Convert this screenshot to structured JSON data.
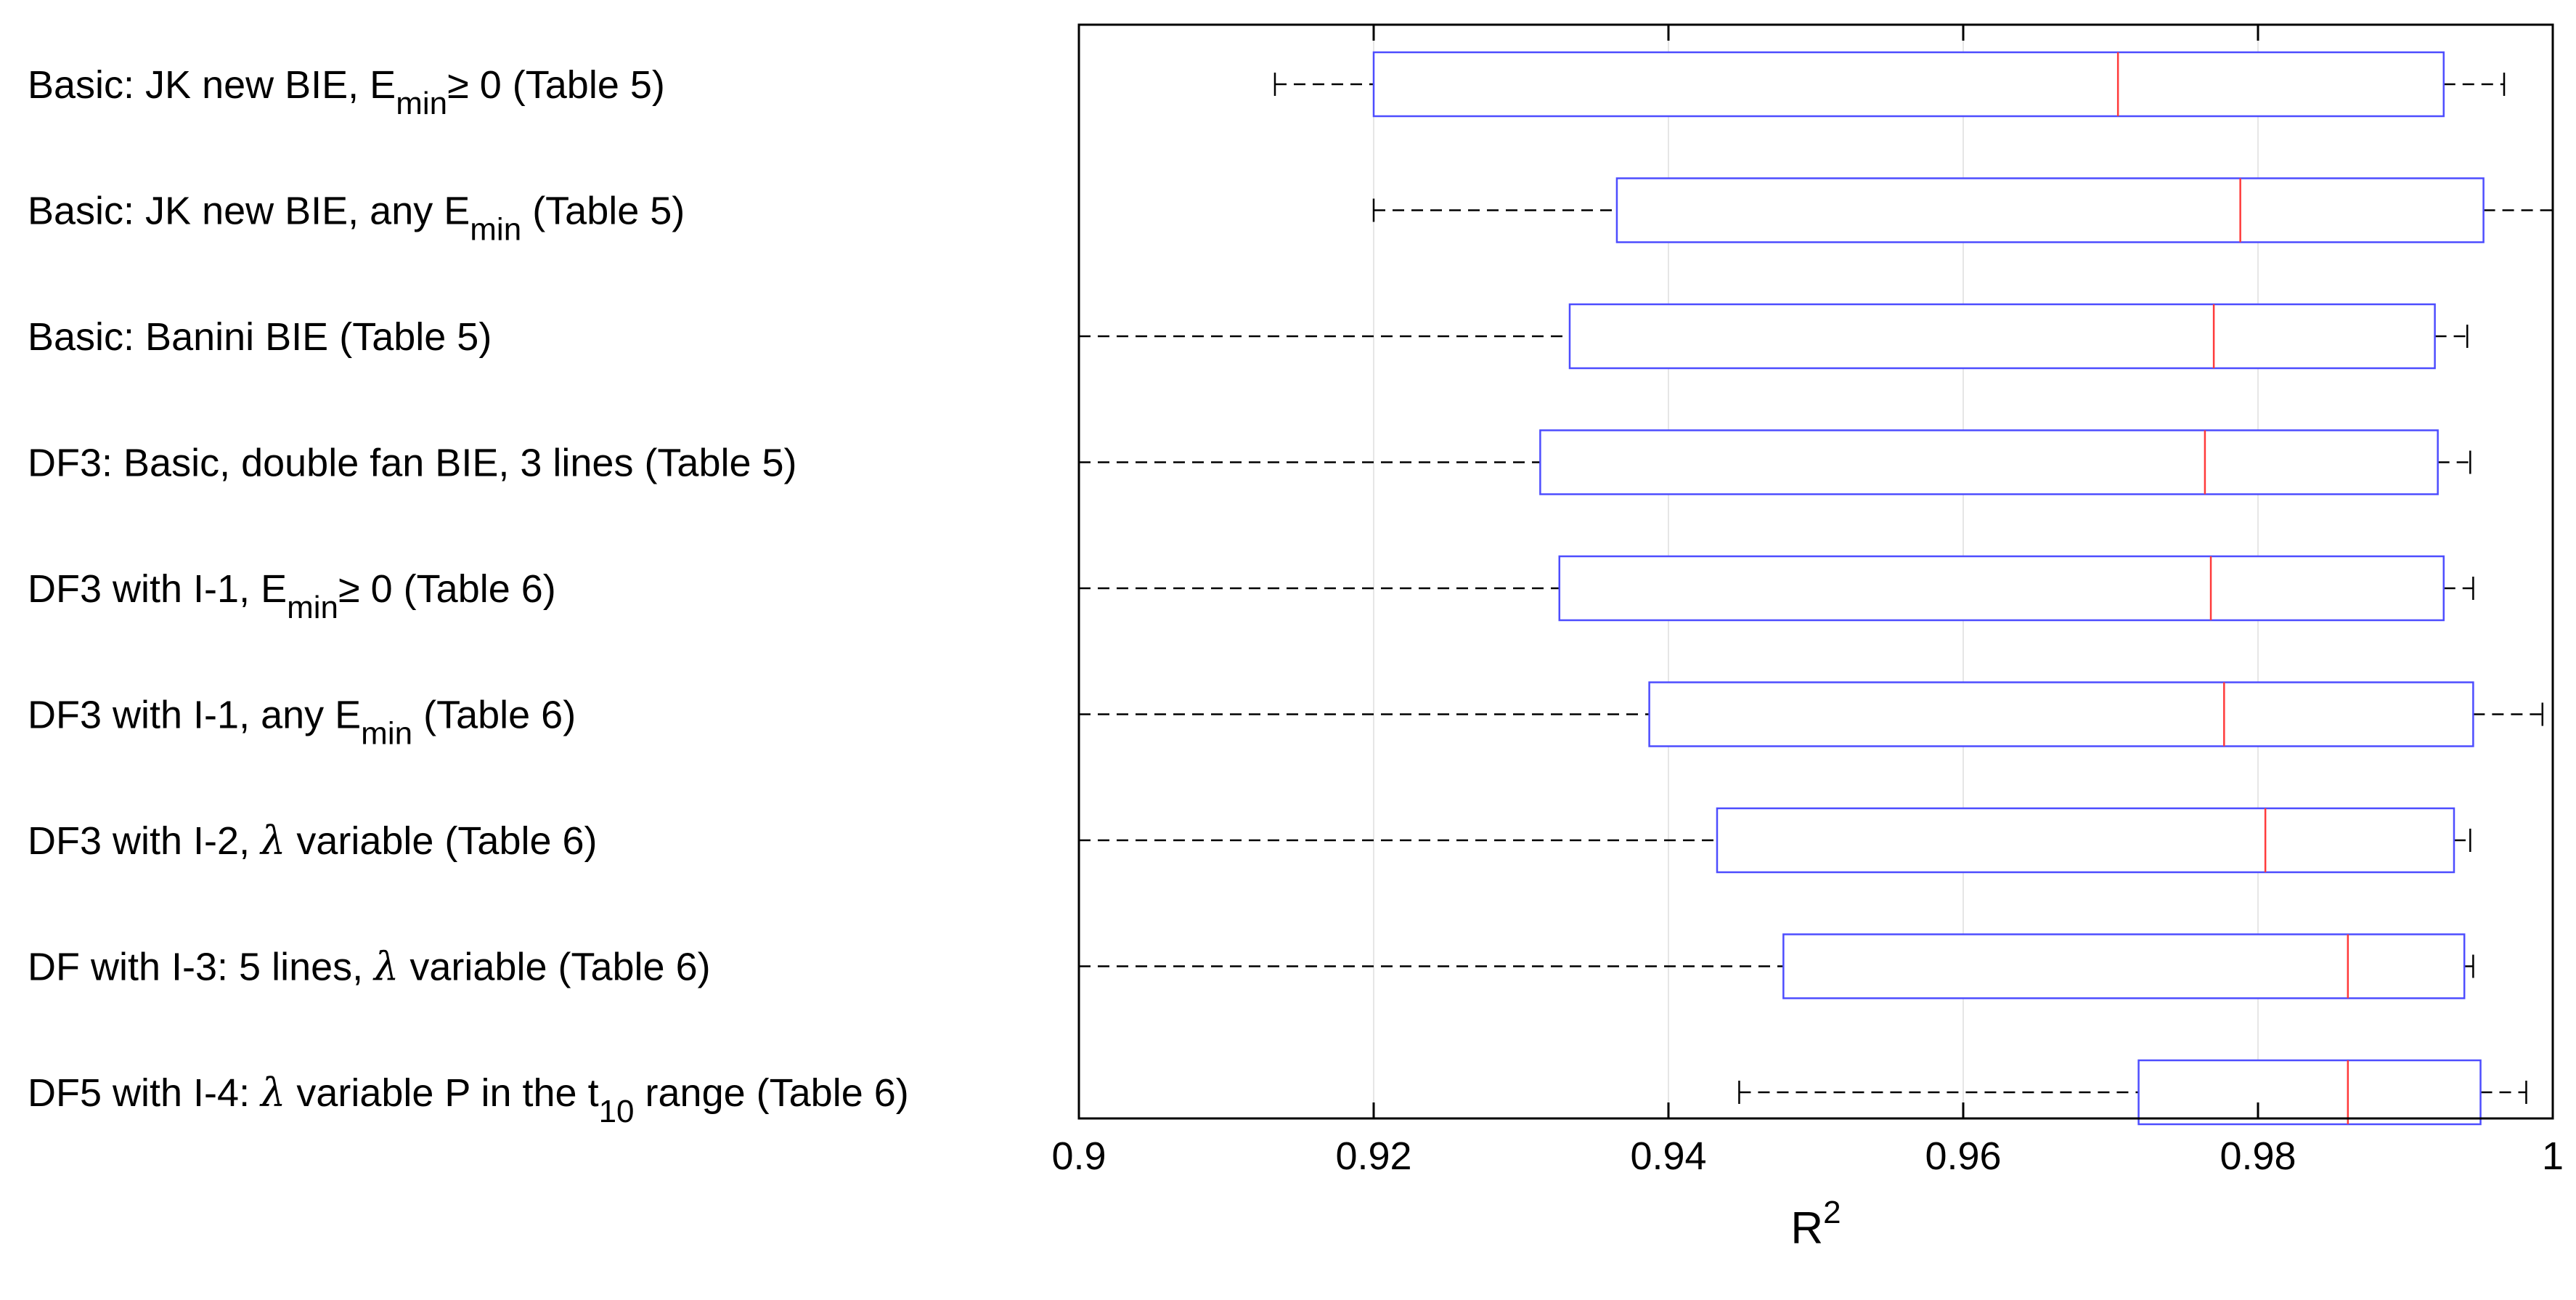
{
  "chart_data": {
    "type": "boxplot",
    "orientation": "horizontal",
    "xlabel": "R",
    "xlabel_superscript": "2",
    "xlim": [
      0.9,
      1.0
    ],
    "xticks": [
      0.9,
      0.92,
      0.94,
      0.96,
      0.98,
      1.0
    ],
    "xtick_labels": [
      "0.9",
      "0.92",
      "0.94",
      "0.96",
      "0.98",
      "1"
    ],
    "grid": "vertical",
    "colors": {
      "box": "#4d4dff",
      "median": "#ff3b3b",
      "whisker": "#000000",
      "grid": "#e6e6e6",
      "axis": "#000000"
    },
    "series": [
      {
        "label": [
          {
            "t": "Basic: JK new BIE, E"
          },
          {
            "t": "min",
            "sub": true
          },
          {
            "t": "≥ 0 (Table 5)"
          }
        ],
        "whisker_low": 0.9133,
        "q1": 0.92,
        "median": 0.9705,
        "q3": 0.9926,
        "whisker_high": 0.9967
      },
      {
        "label": [
          {
            "t": "Basic: JK new BIE, any E"
          },
          {
            "t": "min",
            "sub": true
          },
          {
            "t": " (Table 5)"
          }
        ],
        "whisker_low": 0.92,
        "q1": 0.9365,
        "median": 0.9788,
        "q3": 0.9953,
        "whisker_high": 1.0
      },
      {
        "label": [
          {
            "t": "Basic: Banini BIE (Table 5)"
          }
        ],
        "whisker_low": 0.9,
        "q1": 0.9333,
        "median": 0.977,
        "q3": 0.992,
        "whisker_high": 0.9942
      },
      {
        "label": [
          {
            "t": "DF3: Basic, double fan BIE, 3 lines (Table 5)"
          }
        ],
        "whisker_low": 0.9,
        "q1": 0.9313,
        "median": 0.9764,
        "q3": 0.9922,
        "whisker_high": 0.9944
      },
      {
        "label": [
          {
            "t": "DF3 with I-1, E"
          },
          {
            "t": "min",
            "sub": true
          },
          {
            "t": "≥ 0 (Table 6)"
          }
        ],
        "whisker_low": 0.9,
        "q1": 0.9326,
        "median": 0.9768,
        "q3": 0.9926,
        "whisker_high": 0.9946
      },
      {
        "label": [
          {
            "t": "DF3 with I-1, any E"
          },
          {
            "t": "min",
            "sub": true
          },
          {
            "t": " (Table 6)"
          }
        ],
        "whisker_low": 0.9,
        "q1": 0.9387,
        "median": 0.9777,
        "q3": 0.9946,
        "whisker_high": 0.9993
      },
      {
        "label": [
          {
            "t": "DF3 with I-2, "
          },
          {
            "t": "λ",
            "italic": true
          },
          {
            "t": " variable (Table 6)"
          }
        ],
        "whisker_low": 0.9,
        "q1": 0.9433,
        "median": 0.9805,
        "q3": 0.9933,
        "whisker_high": 0.9944
      },
      {
        "label": [
          {
            "t": "DF with I-3: 5 lines, "
          },
          {
            "t": "λ",
            "italic": true
          },
          {
            "t": " variable (Table 6)"
          }
        ],
        "whisker_low": 0.9,
        "q1": 0.9478,
        "median": 0.9861,
        "q3": 0.994,
        "whisker_high": 0.9946
      },
      {
        "label": [
          {
            "t": "DF5 with I-4: "
          },
          {
            "t": "λ",
            "italic": true
          },
          {
            "t": " variable P in the t"
          },
          {
            "t": "10",
            "sub": true
          },
          {
            "t": " range (Table 6)"
          }
        ],
        "whisker_low": 0.9448,
        "q1": 0.9719,
        "median": 0.9861,
        "q3": 0.9951,
        "whisker_high": 0.9982
      }
    ]
  }
}
